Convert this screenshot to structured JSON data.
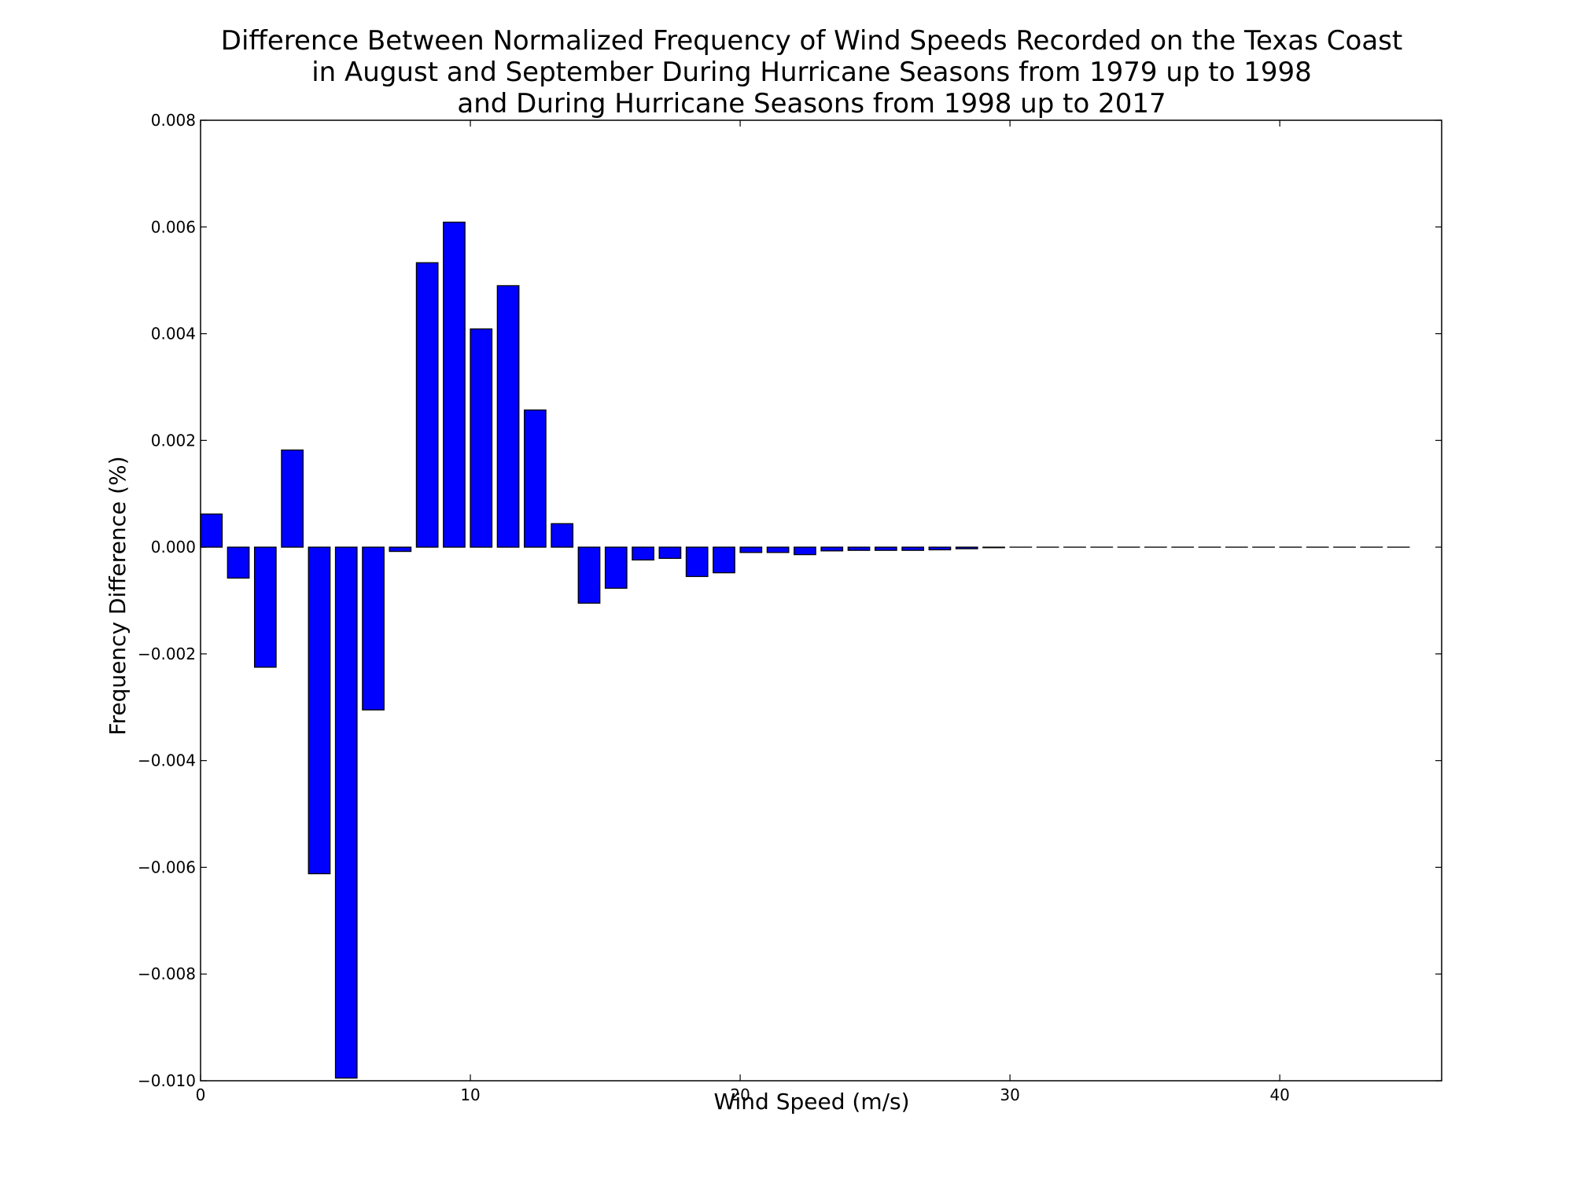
{
  "chart_data": {
    "type": "bar",
    "title_lines": [
      "Difference Between Normalized Frequency of Wind Speeds Recorded on the Texas Coast",
      "in August and September During Hurricane Seasons from 1979 up to 1998",
      "and During Hurricane Seasons from 1998 up to 2017"
    ],
    "xlabel": "Wind Speed (m/s)",
    "ylabel": "Frequency Difference (%)",
    "xlim": [
      0,
      46
    ],
    "ylim": [
      -0.01,
      0.008
    ],
    "xticks": [
      0,
      10,
      20,
      30,
      40
    ],
    "xtick_labels": [
      "0",
      "10",
      "20",
      "30",
      "40"
    ],
    "yticks": [
      0.008,
      0.006,
      0.004,
      0.002,
      0.0,
      -0.002,
      -0.004,
      -0.006,
      -0.008,
      -0.01
    ],
    "ytick_labels": [
      "0.008",
      "0.006",
      "0.004",
      "0.002",
      "0.000",
      "−0.002",
      "−0.004",
      "−0.006",
      "−0.008",
      "−0.010"
    ],
    "bar_width": 0.8,
    "bar_color": "#0000ff",
    "edge_color": "#000000",
    "grid": false,
    "x": [
      0,
      1,
      2,
      3,
      4,
      5,
      6,
      7,
      8,
      9,
      10,
      11,
      12,
      13,
      14,
      15,
      16,
      17,
      18,
      19,
      20,
      21,
      22,
      23,
      24,
      25,
      26,
      27,
      28,
      29,
      30,
      31,
      32,
      33,
      34,
      35,
      36,
      37,
      38,
      39,
      40,
      41,
      42,
      43,
      44
    ],
    "values": [
      0.00062,
      -0.00058,
      -0.00225,
      0.00182,
      -0.00612,
      -0.00995,
      -0.00305,
      -8e-05,
      0.00533,
      0.00609,
      0.00409,
      0.0049,
      0.00257,
      0.00044,
      -0.00105,
      -0.00077,
      -0.00024,
      -0.00021,
      -0.00055,
      -0.00048,
      -0.0001,
      -0.0001,
      -0.00014,
      -7e-05,
      -6e-05,
      -6e-05,
      -6e-05,
      -5e-05,
      -3e-05,
      -1e-05,
      0,
      0,
      0,
      0,
      0,
      0,
      0,
      0,
      0,
      0,
      0,
      0,
      0,
      0,
      0
    ]
  }
}
